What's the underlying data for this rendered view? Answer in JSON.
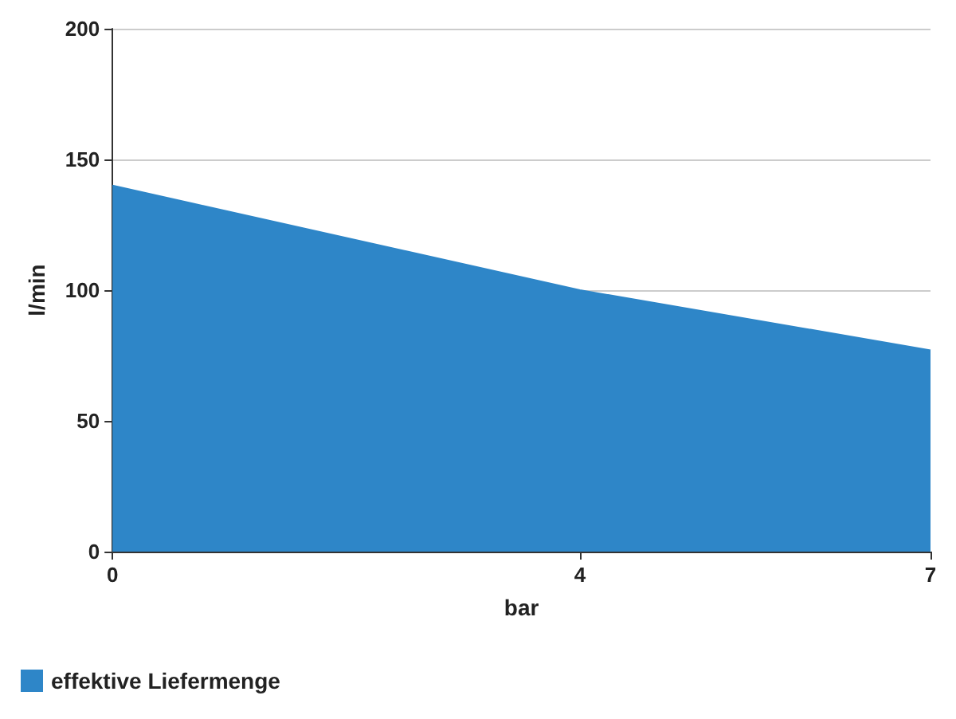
{
  "chart_data": {
    "type": "area",
    "xlabel": "bar",
    "ylabel": "l/min",
    "x": [
      0,
      4,
      7
    ],
    "series": [
      {
        "name": "effektive Liefermenge",
        "color": "#2e86c8",
        "values": [
          140,
          100,
          77
        ]
      }
    ],
    "xlim": [
      0,
      7
    ],
    "xticks": [
      0,
      4,
      7
    ],
    "ylim": [
      0,
      200
    ],
    "yticks": [
      0,
      50,
      100,
      150,
      200
    ],
    "grid": "y",
    "legend": "bottom left",
    "marker": "none"
  }
}
